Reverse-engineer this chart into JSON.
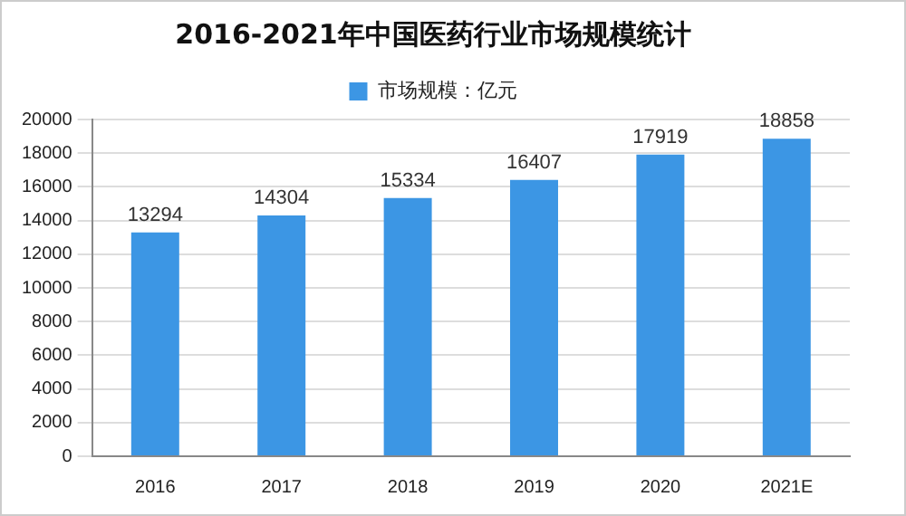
{
  "chart_data": {
    "type": "bar",
    "title": "2016-2021年中国医药行业市场规模统计",
    "categories": [
      "2016",
      "2017",
      "2018",
      "2019",
      "2020",
      "2021E"
    ],
    "series": [
      {
        "name": "市场规模：亿元",
        "color": "#3c96e4",
        "values": [
          13294,
          14304,
          15334,
          16407,
          17919,
          18858
        ]
      }
    ],
    "ylim": [
      0,
      20000
    ],
    "yticks": [
      0,
      2000,
      4000,
      6000,
      8000,
      10000,
      12000,
      14000,
      16000,
      18000,
      20000
    ],
    "grid": "y",
    "legend": "top",
    "data_labels": true
  }
}
